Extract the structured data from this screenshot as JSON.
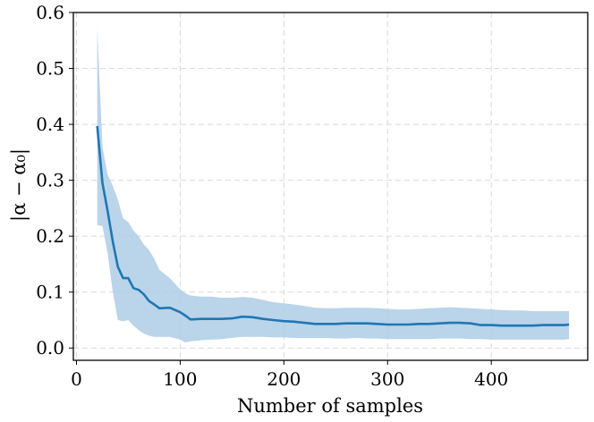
{
  "chart_data": {
    "type": "line",
    "xlabel": "Number of samples",
    "ylabel": "|α − α₀|",
    "xlim": [
      -3,
      493
    ],
    "ylim": [
      -0.022,
      0.6
    ],
    "xticks": [
      0,
      100,
      200,
      300,
      400
    ],
    "yticks": [
      0.0,
      0.1,
      0.2,
      0.3,
      0.4,
      0.5,
      0.6
    ],
    "xtick_labels": [
      "0",
      "100",
      "200",
      "300",
      "400"
    ],
    "ytick_labels": [
      "0.0",
      "0.1",
      "0.2",
      "0.3",
      "0.4",
      "0.5",
      "0.6"
    ],
    "grid": true,
    "legend": "none",
    "colors": {
      "line": "#1f77b4",
      "band": "#aecde6"
    },
    "series": [
      {
        "x": [
          20,
          25,
          30,
          35,
          40,
          45,
          50,
          55,
          60,
          65,
          70,
          75,
          80,
          90,
          100,
          105,
          110,
          120,
          130,
          140,
          150,
          160,
          170,
          180,
          190,
          200,
          210,
          220,
          230,
          240,
          250,
          260,
          270,
          280,
          290,
          300,
          310,
          320,
          330,
          340,
          350,
          360,
          370,
          380,
          390,
          400,
          410,
          420,
          430,
          440,
          450,
          460,
          470,
          475
        ],
        "y": [
          0.397,
          0.295,
          0.245,
          0.19,
          0.145,
          0.125,
          0.125,
          0.107,
          0.104,
          0.096,
          0.084,
          0.078,
          0.071,
          0.072,
          0.064,
          0.058,
          0.051,
          0.052,
          0.052,
          0.052,
          0.053,
          0.056,
          0.055,
          0.052,
          0.05,
          0.048,
          0.047,
          0.045,
          0.043,
          0.043,
          0.043,
          0.044,
          0.044,
          0.044,
          0.043,
          0.042,
          0.042,
          0.042,
          0.043,
          0.043,
          0.044,
          0.045,
          0.045,
          0.044,
          0.041,
          0.041,
          0.04,
          0.04,
          0.04,
          0.04,
          0.041,
          0.041,
          0.041,
          0.042
        ],
        "upper": [
          0.572,
          0.36,
          0.31,
          0.29,
          0.265,
          0.232,
          0.225,
          0.21,
          0.2,
          0.185,
          0.175,
          0.16,
          0.14,
          0.125,
          0.105,
          0.098,
          0.094,
          0.092,
          0.092,
          0.09,
          0.09,
          0.091,
          0.09,
          0.086,
          0.082,
          0.08,
          0.078,
          0.075,
          0.072,
          0.071,
          0.071,
          0.072,
          0.072,
          0.072,
          0.071,
          0.07,
          0.069,
          0.069,
          0.07,
          0.071,
          0.072,
          0.073,
          0.072,
          0.071,
          0.07,
          0.069,
          0.068,
          0.067,
          0.067,
          0.066,
          0.066,
          0.066,
          0.066,
          0.066
        ],
        "lower": [
          0.22,
          0.218,
          0.17,
          0.1,
          0.05,
          0.048,
          0.05,
          0.04,
          0.032,
          0.026,
          0.022,
          0.02,
          0.02,
          0.02,
          0.015,
          0.01,
          0.012,
          0.014,
          0.015,
          0.016,
          0.018,
          0.02,
          0.02,
          0.02,
          0.019,
          0.019,
          0.018,
          0.018,
          0.018,
          0.018,
          0.017,
          0.017,
          0.018,
          0.017,
          0.017,
          0.016,
          0.016,
          0.016,
          0.016,
          0.016,
          0.017,
          0.017,
          0.017,
          0.016,
          0.016,
          0.015,
          0.015,
          0.015,
          0.015,
          0.015,
          0.015,
          0.015,
          0.015,
          0.016
        ]
      }
    ]
  }
}
